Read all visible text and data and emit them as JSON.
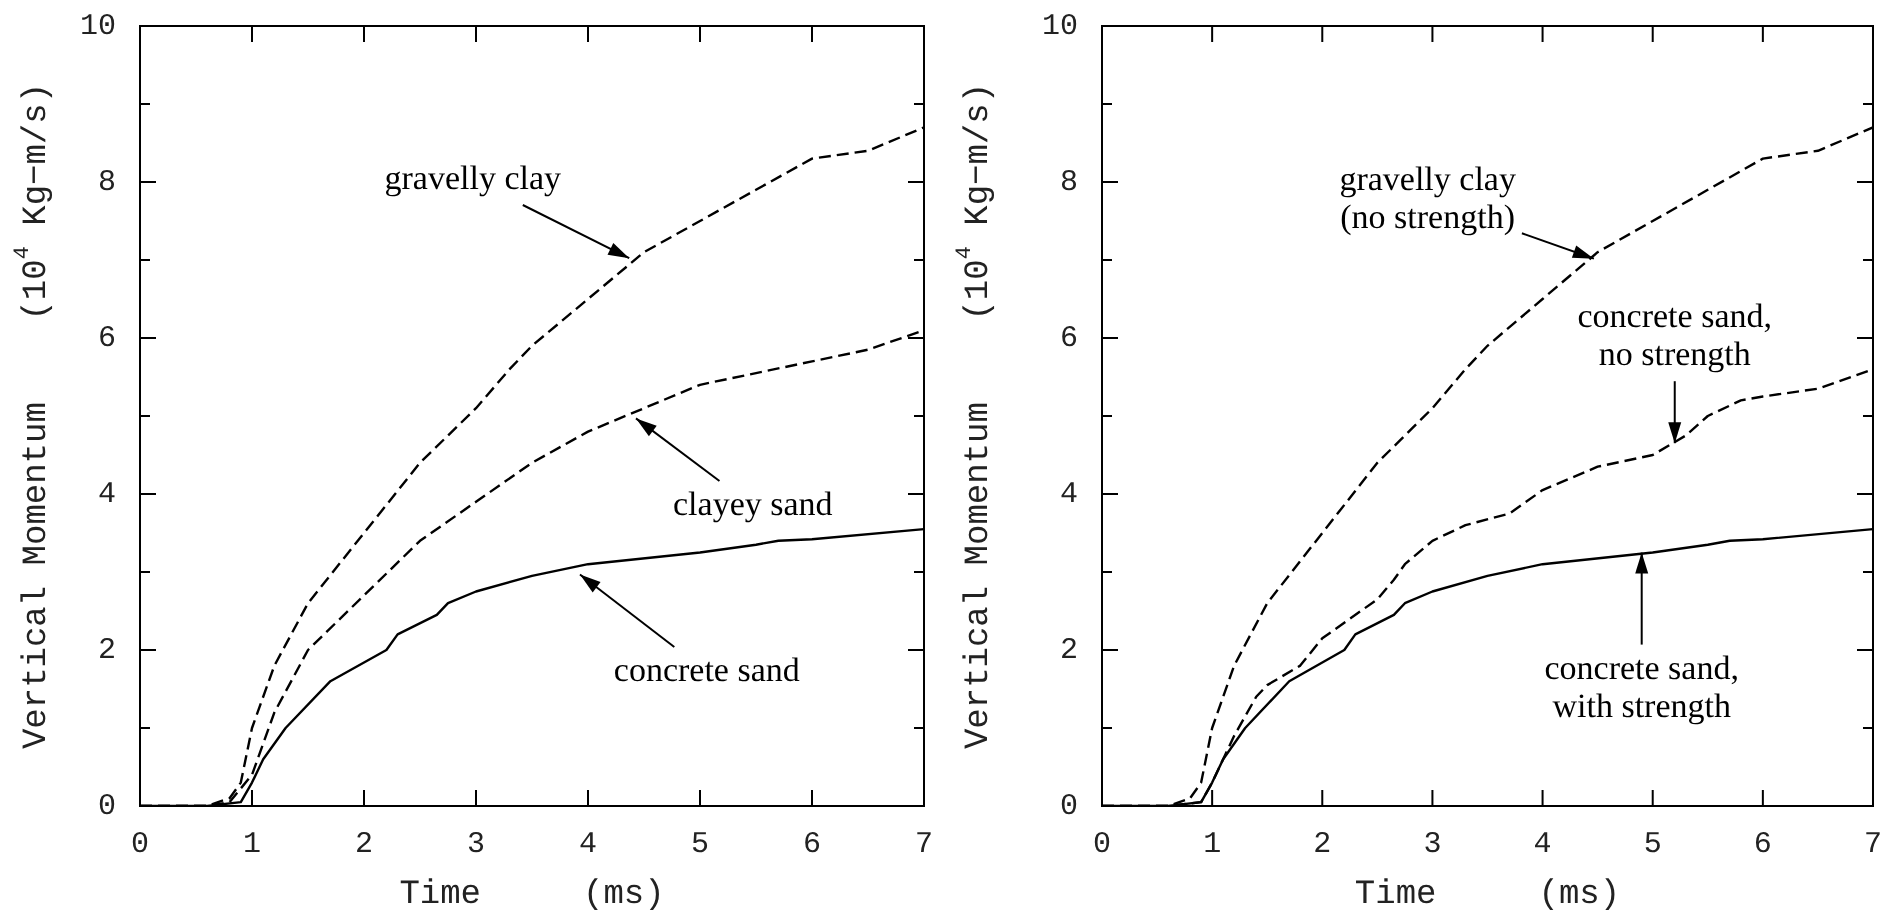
{
  "chart_data": [
    {
      "type": "line",
      "xlabel": "Time     (ms)",
      "ylabel": "Vertical Momentum    (10$^{4}$ Kg−m/s)",
      "xlim": [
        0,
        7
      ],
      "ylim": [
        0,
        10
      ],
      "xticks": [
        0,
        1,
        2,
        3,
        4,
        5,
        6,
        7
      ],
      "yticks": [
        0,
        {
          "value": 1,
          "label": null
        },
        2,
        {
          "value": 3,
          "label": null
        },
        4,
        {
          "value": 5,
          "label": null
        },
        6,
        {
          "value": 7,
          "label": null
        },
        8,
        {
          "value": 9,
          "label": null
        },
        10
      ],
      "grid": false,
      "legend": false,
      "marker": "none",
      "series": [
        {
          "color": "#000000",
          "line_style": "dashed",
          "x": [
            0,
            0.6,
            0.8,
            0.9,
            1.0,
            1.2,
            1.5,
            2.0,
            2.5,
            3.0,
            3.3,
            3.5,
            4.0,
            4.5,
            5.0,
            5.5,
            6.0,
            6.5,
            7.0
          ],
          "values": [
            0,
            0,
            0.1,
            0.3,
            1.0,
            1.8,
            2.6,
            3.5,
            4.4,
            5.1,
            5.6,
            5.9,
            6.5,
            7.1,
            7.5,
            7.9,
            8.3,
            8.4,
            8.7
          ]
        },
        {
          "color": "#000000",
          "line_style": "dashed",
          "x": [
            0,
            0.6,
            0.8,
            1.0,
            1.2,
            1.5,
            2.0,
            2.5,
            3.0,
            3.5,
            4.0,
            4.5,
            5.0,
            5.5,
            6.0,
            6.5,
            7.0
          ],
          "values": [
            0,
            0,
            0.05,
            0.4,
            1.2,
            2.0,
            2.7,
            3.4,
            3.9,
            4.4,
            4.8,
            5.1,
            5.4,
            5.55,
            5.7,
            5.85,
            6.1
          ]
        },
        {
          "color": "#000000",
          "line_style": "solid",
          "x": [
            0,
            0.6,
            0.9,
            1.0,
            1.1,
            1.3,
            1.7,
            2.2,
            2.3,
            2.65,
            2.75,
            3.0,
            3.5,
            4.0,
            5.0,
            5.5,
            5.7,
            6.0,
            7.0
          ],
          "values": [
            0,
            0,
            0.05,
            0.3,
            0.6,
            1.0,
            1.6,
            2.0,
            2.2,
            2.45,
            2.6,
            2.75,
            2.95,
            3.1,
            3.25,
            3.35,
            3.4,
            3.42,
            3.55
          ]
        }
      ],
      "annotations": [
        {
          "text": "gravelly clay",
          "x": 4.4,
          "y": 7.0
        },
        {
          "text": "clayey sand",
          "x": 4.4,
          "y": 5.0
        },
        {
          "text": "concrete sand",
          "x": 3.9,
          "y": 3.0
        }
      ]
    },
    {
      "type": "line",
      "xlabel": "Time     (ms)",
      "ylabel": "Vertical Momentum    (10$^{4}$ Kg−m/s)",
      "xlim": [
        0,
        7
      ],
      "ylim": [
        0,
        10
      ],
      "xticks": [
        0,
        1,
        2,
        3,
        4,
        5,
        6,
        7
      ],
      "yticks": [
        0,
        {
          "value": 1,
          "label": null
        },
        2,
        {
          "value": 3,
          "label": null
        },
        4,
        {
          "value": 5,
          "label": null
        },
        6,
        {
          "value": 7,
          "label": null
        },
        8,
        {
          "value": 9,
          "label": null
        },
        10
      ],
      "grid": false,
      "legend": false,
      "marker": "none",
      "series": [
        {
          "color": "#000000",
          "line_style": "dashed",
          "x": [
            0,
            0.6,
            0.8,
            0.9,
            1.0,
            1.2,
            1.5,
            2.0,
            2.5,
            3.0,
            3.3,
            3.5,
            4.0,
            4.5,
            5.0,
            5.5,
            6.0,
            6.5,
            7.0
          ],
          "values": [
            0,
            0,
            0.1,
            0.3,
            1.0,
            1.8,
            2.6,
            3.5,
            4.4,
            5.1,
            5.6,
            5.9,
            6.5,
            7.1,
            7.5,
            7.9,
            8.3,
            8.4,
            8.7
          ]
        },
        {
          "color": "#000000",
          "line_style": "dashed",
          "x": [
            0,
            0.6,
            0.9,
            1.0,
            1.2,
            1.4,
            1.5,
            1.8,
            2.0,
            2.5,
            2.65,
            2.75,
            3.0,
            3.3,
            3.7,
            4.0,
            4.5,
            5.0,
            5.3,
            5.5,
            5.8,
            6.0,
            6.5,
            7.0
          ],
          "values": [
            0,
            0,
            0.05,
            0.3,
            0.9,
            1.4,
            1.55,
            1.8,
            2.15,
            2.65,
            2.9,
            3.1,
            3.4,
            3.6,
            3.75,
            4.05,
            4.35,
            4.5,
            4.75,
            5.0,
            5.2,
            5.25,
            5.35,
            5.6
          ]
        },
        {
          "color": "#000000",
          "line_style": "solid",
          "x": [
            0,
            0.6,
            0.9,
            1.0,
            1.1,
            1.3,
            1.7,
            2.2,
            2.3,
            2.65,
            2.75,
            3.0,
            3.5,
            4.0,
            5.0,
            5.5,
            5.7,
            6.0,
            7.0
          ],
          "values": [
            0,
            0,
            0.05,
            0.3,
            0.6,
            1.0,
            1.6,
            2.0,
            2.2,
            2.45,
            2.6,
            2.75,
            2.95,
            3.1,
            3.25,
            3.35,
            3.4,
            3.42,
            3.55
          ]
        }
      ],
      "annotations": [
        {
          "text": "gravelly clay\n(no strength)",
          "x": 4.5,
          "y": 7.0
        },
        {
          "text": "concrete sand,\nno strength",
          "x": 5.2,
          "y": 4.6
        },
        {
          "text": "concrete sand,\nwith strength",
          "x": 4.9,
          "y": 3.3
        }
      ]
    }
  ]
}
